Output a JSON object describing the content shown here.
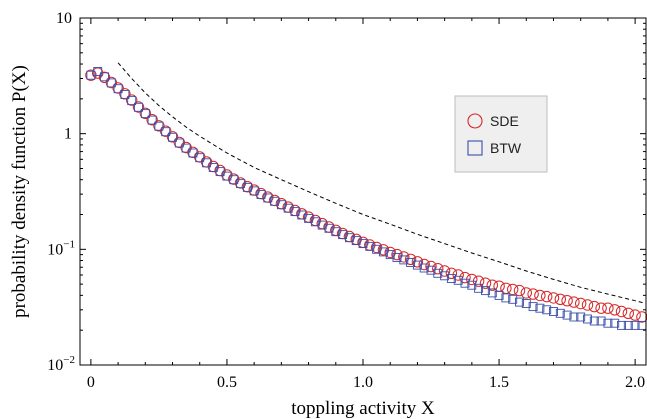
{
  "chart_data": {
    "type": "scatter",
    "title": "",
    "xlabel": "toppling activity X",
    "ylabel": "probability density function P(X)",
    "xlim": [
      -0.04,
      2.04
    ],
    "ylim": [
      0.01,
      10
    ],
    "y_scale": "log",
    "x_ticks": [
      "0",
      "0.5",
      "1.0",
      "1.5",
      "2.0"
    ],
    "y_ticks": [
      {
        "base": "10",
        "exp": "",
        "value": 10
      },
      {
        "base": "1",
        "exp": "",
        "value": 1
      },
      {
        "base": "10",
        "exp": "−1",
        "value": 0.1
      },
      {
        "base": "10",
        "exp": "−2",
        "value": 0.01
      }
    ],
    "grid": false,
    "legend_position": "right, upper-middle",
    "series": [
      {
        "name": "SDE",
        "marker": "circle",
        "color": "#d62728",
        "x": [
          0.0,
          0.025,
          0.05,
          0.075,
          0.1,
          0.125,
          0.15,
          0.175,
          0.2,
          0.225,
          0.25,
          0.275,
          0.3,
          0.325,
          0.35,
          0.375,
          0.4,
          0.425,
          0.45,
          0.475,
          0.5,
          0.525,
          0.55,
          0.575,
          0.6,
          0.625,
          0.65,
          0.675,
          0.7,
          0.725,
          0.75,
          0.775,
          0.8,
          0.825,
          0.85,
          0.875,
          0.9,
          0.925,
          0.95,
          0.975,
          1.0,
          1.025,
          1.05,
          1.075,
          1.1,
          1.125,
          1.15,
          1.175,
          1.2,
          1.225,
          1.25,
          1.275,
          1.3,
          1.325,
          1.35,
          1.375,
          1.4,
          1.425,
          1.45,
          1.475,
          1.5,
          1.525,
          1.55,
          1.575,
          1.6,
          1.625,
          1.65,
          1.675,
          1.7,
          1.725,
          1.75,
          1.775,
          1.8,
          1.825,
          1.85,
          1.875,
          1.9,
          1.925,
          1.95,
          1.975,
          2.0,
          2.025
        ],
        "y": [
          3.2,
          3.34,
          3.07,
          2.77,
          2.48,
          2.21,
          1.95,
          1.7,
          1.5,
          1.32,
          1.17,
          1.05,
          0.94,
          0.84,
          0.76,
          0.69,
          0.63,
          0.57,
          0.52,
          0.48,
          0.44,
          0.405,
          0.375,
          0.348,
          0.325,
          0.303,
          0.283,
          0.265,
          0.248,
          0.232,
          0.217,
          0.203,
          0.19,
          0.178,
          0.167,
          0.156,
          0.146,
          0.137,
          0.129,
          0.122,
          0.115,
          0.109,
          0.104,
          0.099,
          0.094,
          0.09,
          0.086,
          0.082,
          0.078,
          0.074,
          0.071,
          0.068,
          0.065,
          0.062,
          0.06,
          0.057,
          0.055,
          0.053,
          0.051,
          0.049,
          0.048,
          0.046,
          0.045,
          0.044,
          0.042,
          0.041,
          0.04,
          0.039,
          0.038,
          0.037,
          0.036,
          0.035,
          0.034,
          0.033,
          0.032,
          0.031,
          0.031,
          0.03,
          0.029,
          0.028,
          0.027,
          0.026
        ]
      },
      {
        "name": "BTW",
        "marker": "square",
        "color": "#3b4fa8",
        "x": [
          0.0,
          0.025,
          0.05,
          0.075,
          0.1,
          0.125,
          0.15,
          0.175,
          0.2,
          0.225,
          0.25,
          0.275,
          0.3,
          0.325,
          0.35,
          0.375,
          0.4,
          0.425,
          0.45,
          0.475,
          0.5,
          0.525,
          0.55,
          0.575,
          0.6,
          0.625,
          0.65,
          0.675,
          0.7,
          0.725,
          0.75,
          0.775,
          0.8,
          0.825,
          0.85,
          0.875,
          0.9,
          0.925,
          0.95,
          0.975,
          1.0,
          1.025,
          1.05,
          1.075,
          1.1,
          1.125,
          1.15,
          1.175,
          1.2,
          1.225,
          1.25,
          1.275,
          1.3,
          1.325,
          1.35,
          1.375,
          1.4,
          1.425,
          1.45,
          1.475,
          1.5,
          1.525,
          1.55,
          1.575,
          1.6,
          1.625,
          1.65,
          1.675,
          1.7,
          1.725,
          1.75,
          1.775,
          1.8,
          1.825,
          1.85,
          1.875,
          1.9,
          1.925,
          1.95,
          1.975,
          2.0,
          2.025
        ],
        "y": [
          3.2,
          3.45,
          3.1,
          2.75,
          2.45,
          2.18,
          1.93,
          1.69,
          1.49,
          1.31,
          1.16,
          1.04,
          0.93,
          0.83,
          0.75,
          0.68,
          0.62,
          0.56,
          0.51,
          0.47,
          0.43,
          0.4,
          0.37,
          0.343,
          0.32,
          0.298,
          0.278,
          0.26,
          0.243,
          0.227,
          0.212,
          0.198,
          0.185,
          0.173,
          0.162,
          0.152,
          0.142,
          0.134,
          0.126,
          0.119,
          0.112,
          0.106,
          0.1,
          0.095,
          0.09,
          0.085,
          0.081,
          0.077,
          0.073,
          0.069,
          0.066,
          0.062,
          0.059,
          0.056,
          0.054,
          0.051,
          0.049,
          0.046,
          0.044,
          0.042,
          0.04,
          0.038,
          0.037,
          0.035,
          0.034,
          0.032,
          0.031,
          0.03,
          0.029,
          0.028,
          0.027,
          0.026,
          0.026,
          0.025,
          0.024,
          0.024,
          0.023,
          0.023,
          0.022,
          0.022,
          0.022,
          0.022
        ]
      }
    ],
    "reference_curve": {
      "style": "dashed",
      "color": "#000000",
      "x": [
        0.1,
        0.15,
        0.2,
        0.25,
        0.3,
        0.35,
        0.4,
        0.5,
        0.6,
        0.7,
        0.8,
        0.9,
        1.0,
        1.1,
        1.2,
        1.3,
        1.4,
        1.5,
        1.6,
        1.7,
        1.8,
        1.9,
        2.0,
        2.04
      ],
      "y": [
        4.1,
        3.0,
        2.25,
        1.75,
        1.4,
        1.14,
        0.95,
        0.68,
        0.51,
        0.4,
        0.315,
        0.25,
        0.2,
        0.165,
        0.135,
        0.112,
        0.093,
        0.078,
        0.065,
        0.055,
        0.047,
        0.041,
        0.036,
        0.034
      ]
    }
  }
}
